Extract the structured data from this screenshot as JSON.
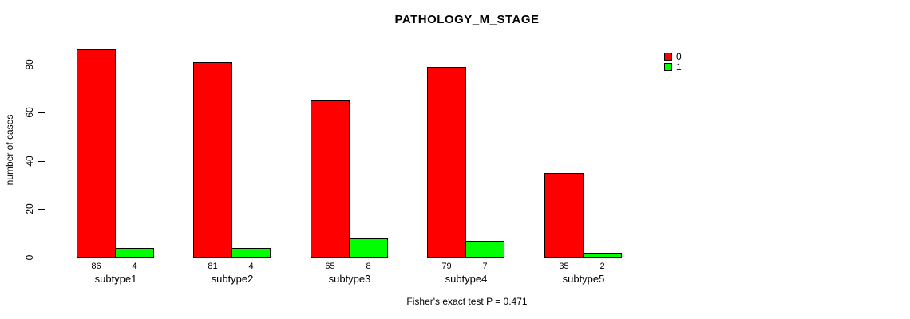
{
  "chart_data": {
    "type": "bar",
    "grouped": true,
    "title": "PATHOLOGY_M_STAGE",
    "ylabel": "number of cases",
    "xlabel": "",
    "categories": [
      "subtype1",
      "subtype2",
      "subtype3",
      "subtype4",
      "subtype5"
    ],
    "series": [
      {
        "name": "0",
        "color": "#FF0000",
        "values": [
          86,
          81,
          65,
          79,
          35
        ]
      },
      {
        "name": "1",
        "color": "#00FF00",
        "values": [
          4,
          4,
          8,
          7,
          2
        ]
      }
    ],
    "bar_value_labels": [
      [
        86,
        4
      ],
      [
        81,
        4
      ],
      [
        65,
        8
      ],
      [
        79,
        7
      ],
      [
        35,
        2
      ]
    ],
    "yticks": [
      0,
      20,
      40,
      60,
      80
    ],
    "ylim": [
      0,
      90
    ],
    "grid": false,
    "legend_position": "top-right",
    "legend_entries": [
      {
        "label": "0",
        "color": "#FF0000"
      },
      {
        "label": "1",
        "color": "#00FF00"
      }
    ],
    "annotation": "Fisher's exact test P = 0.471"
  }
}
